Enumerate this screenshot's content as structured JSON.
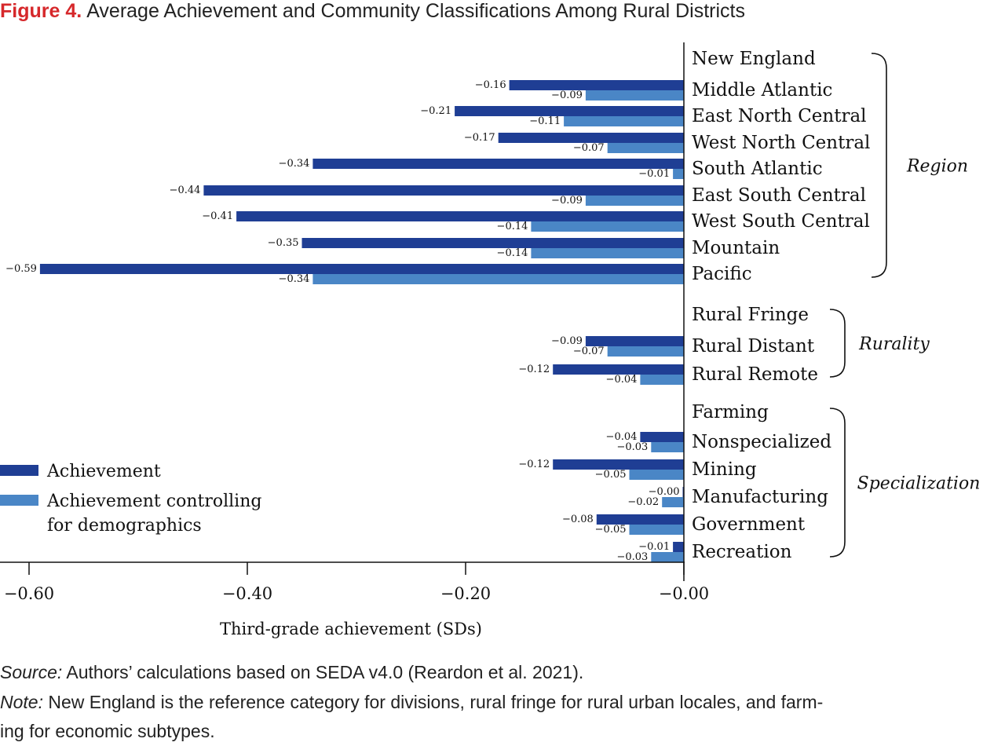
{
  "figure": {
    "label": "Figure 4.",
    "title": "Average Achievement and Community Classifications Among Rural Districts"
  },
  "chart_data": {
    "type": "bar",
    "orientation": "horizontal",
    "xlabel": "Third-grade achievement (SDs)",
    "xlim": [
      -0.62,
      0.0
    ],
    "xticks": [
      -0.6,
      -0.4,
      -0.2,
      0.0
    ],
    "xtick_labels": [
      "−0.60",
      "−0.40",
      "−0.20",
      "−0.00"
    ],
    "grid": false,
    "legend_position": "bottom-left",
    "series": [
      {
        "name": "Achievement",
        "color": "#1f3e94"
      },
      {
        "name": "Achievement controlling for demographics",
        "color": "#4a86c6"
      }
    ],
    "legend_lines": [
      [
        "Achievement"
      ],
      [
        "Achievement controlling",
        "for demographics"
      ]
    ],
    "groups": [
      {
        "name": "Region",
        "start": 0,
        "end": 8
      },
      {
        "name": "Rurality",
        "start": 9,
        "end": 11
      },
      {
        "name": "Specialization",
        "start": 12,
        "end": 17
      }
    ],
    "categories": [
      {
        "name": "New England",
        "achievement": null,
        "controlled": null,
        "achievement_label": "",
        "controlled_label": ""
      },
      {
        "name": "Middle Atlantic",
        "achievement": -0.16,
        "controlled": -0.09,
        "achievement_label": "−0.16",
        "controlled_label": "−0.09"
      },
      {
        "name": "East North Central",
        "achievement": -0.21,
        "controlled": -0.11,
        "achievement_label": "−0.21",
        "controlled_label": "−0.11"
      },
      {
        "name": "West North Central",
        "achievement": -0.17,
        "controlled": -0.07,
        "achievement_label": "−0.17",
        "controlled_label": "−0.07"
      },
      {
        "name": "South Atlantic",
        "achievement": -0.34,
        "controlled": -0.01,
        "achievement_label": "−0.34",
        "controlled_label": "−0.01"
      },
      {
        "name": "East South Central",
        "achievement": -0.44,
        "controlled": -0.09,
        "achievement_label": "−0.44",
        "controlled_label": "−0.09"
      },
      {
        "name": "West South Central",
        "achievement": -0.41,
        "controlled": -0.14,
        "achievement_label": "−0.41",
        "controlled_label": "−0.14"
      },
      {
        "name": "Mountain",
        "achievement": -0.35,
        "controlled": -0.14,
        "achievement_label": "−0.35",
        "controlled_label": "−0.14"
      },
      {
        "name": "Pacific",
        "achievement": -0.59,
        "controlled": -0.34,
        "achievement_label": "−0.59",
        "controlled_label": "−0.34"
      },
      {
        "name": "Rural Fringe",
        "achievement": null,
        "controlled": null,
        "achievement_label": "",
        "controlled_label": ""
      },
      {
        "name": "Rural Distant",
        "achievement": -0.09,
        "controlled": -0.07,
        "achievement_label": "−0.09",
        "controlled_label": "−0.07"
      },
      {
        "name": "Rural Remote",
        "achievement": -0.12,
        "controlled": -0.04,
        "achievement_label": "−0.12",
        "controlled_label": "−0.04"
      },
      {
        "name": "Farming",
        "achievement": null,
        "controlled": null,
        "achievement_label": "",
        "controlled_label": ""
      },
      {
        "name": "Nonspecialized",
        "achievement": -0.04,
        "controlled": -0.03,
        "achievement_label": "−0.04",
        "controlled_label": "−0.03"
      },
      {
        "name": "Mining",
        "achievement": -0.12,
        "controlled": -0.05,
        "achievement_label": "−0.12",
        "controlled_label": "−0.05"
      },
      {
        "name": "Manufacturing",
        "achievement": -0.0,
        "controlled": -0.02,
        "achievement_label": "−0.00",
        "controlled_label": "−0.02"
      },
      {
        "name": "Government",
        "achievement": -0.08,
        "controlled": -0.05,
        "achievement_label": "−0.08",
        "controlled_label": "−0.05"
      },
      {
        "name": "Recreation",
        "achievement": -0.01,
        "controlled": -0.03,
        "achievement_label": "−0.01",
        "controlled_label": "−0.03"
      }
    ]
  },
  "footnotes": {
    "source_label": "Source:",
    "source_text": " Authors’ calculations based on SEDA v4.0 (Reardon et al. 2021).",
    "note_label": "Note:",
    "note_text": " New England is the reference category for divisions, rural fringe for rural urban locales, and farm-",
    "note_text_2": "ing for economic subtypes."
  }
}
